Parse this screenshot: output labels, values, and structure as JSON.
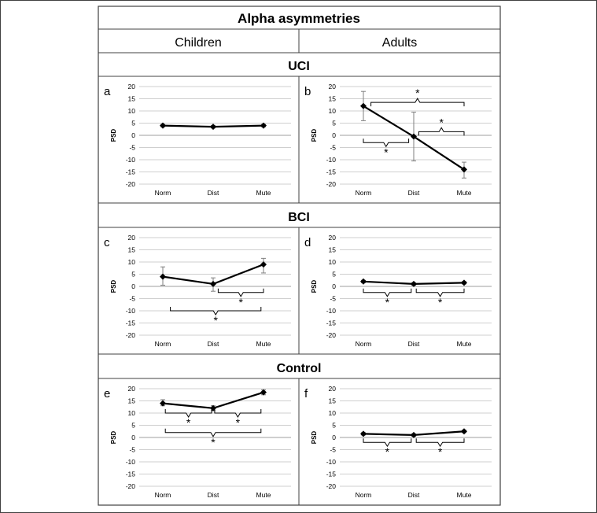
{
  "header": {
    "title": "Alpha asymmetries"
  },
  "columns": [
    "Children",
    "Adults"
  ],
  "sections": [
    "UCI",
    "BCI",
    "Control"
  ],
  "colors": {
    "line": "#000000",
    "grid": "#bfbfbf",
    "errorbar": "#7f7f7f",
    "frame": "#404040"
  },
  "chart_data": [
    {
      "panel": "a",
      "type": "line",
      "categories": [
        "Norm",
        "Dist",
        "Mute"
      ],
      "values": [
        4,
        3.5,
        4
      ],
      "errors": [
        [
          3.5,
          4.5
        ],
        [
          3,
          4
        ],
        [
          3.5,
          4.5
        ]
      ],
      "ylabel": "PSD",
      "ylim": [
        -20,
        20
      ],
      "yticks": [
        "20",
        "15",
        "10",
        "5",
        "0",
        "-5",
        "-10",
        "-15",
        "-20"
      ],
      "grid": true,
      "brackets": []
    },
    {
      "panel": "b",
      "type": "line",
      "categories": [
        "Norm",
        "Dist",
        "Mute"
      ],
      "values": [
        12,
        -0.5,
        -14
      ],
      "errors": [
        [
          6,
          18
        ],
        [
          -10.5,
          9.5
        ],
        [
          -17.5,
          -11
        ]
      ],
      "ylabel": "PSD",
      "ylim": [
        -20,
        20
      ],
      "yticks": [
        "20",
        "15",
        "10",
        "5",
        "0",
        "-5",
        "-10",
        "-15",
        "-20"
      ],
      "grid": true,
      "brackets": [
        {
          "from": 0.15,
          "to": 2,
          "y": 13.5,
          "dir": "up",
          "label": "*"
        },
        {
          "from": 0,
          "to": 0.9,
          "y": -3,
          "dir": "down",
          "label": "*"
        },
        {
          "from": 1.1,
          "to": 2,
          "y": 1.5,
          "dir": "up",
          "label": "*"
        }
      ]
    },
    {
      "panel": "c",
      "type": "line",
      "categories": [
        "Norm",
        "Dist",
        "Mute"
      ],
      "values": [
        4,
        1,
        9
      ],
      "errors": [
        [
          0.5,
          8
        ],
        [
          -2,
          3.5
        ],
        [
          5.5,
          11.5
        ]
      ],
      "ylabel": "PSD",
      "ylim": [
        -20,
        20
      ],
      "yticks": [
        "20",
        "15",
        "10",
        "5",
        "0",
        "-5",
        "-10",
        "-15",
        "-20"
      ],
      "grid": true,
      "brackets": [
        {
          "from": 1.1,
          "to": 2,
          "y": -2.5,
          "dir": "down",
          "label": "*"
        },
        {
          "from": 0.15,
          "to": 1.95,
          "y": -10,
          "dir": "down",
          "label": "*"
        }
      ]
    },
    {
      "panel": "d",
      "type": "line",
      "categories": [
        "Norm",
        "Dist",
        "Mute"
      ],
      "values": [
        2,
        1,
        1.5
      ],
      "errors": [
        [
          1.5,
          2.5
        ],
        [
          0.5,
          1.5
        ],
        [
          1,
          2
        ]
      ],
      "ylabel": "PSD",
      "ylim": [
        -20,
        20
      ],
      "yticks": [
        "20",
        "15",
        "10",
        "5",
        "0",
        "-5",
        "-10",
        "-15",
        "-20"
      ],
      "grid": true,
      "brackets": [
        {
          "from": 0,
          "to": 0.95,
          "y": -2.5,
          "dir": "down",
          "label": "*"
        },
        {
          "from": 1.05,
          "to": 2,
          "y": -2.5,
          "dir": "down",
          "label": "*"
        }
      ]
    },
    {
      "panel": "e",
      "type": "line",
      "categories": [
        "Norm",
        "Dist",
        "Mute"
      ],
      "values": [
        14,
        12,
        18.5
      ],
      "errors": [
        [
          13,
          15.5
        ],
        [
          11,
          13
        ],
        [
          17.5,
          19.5
        ]
      ],
      "ylabel": "PSD",
      "ylim": [
        -20,
        20
      ],
      "yticks": [
        "20",
        "15",
        "10",
        "5",
        "0",
        "-5",
        "-10",
        "-15",
        "-20"
      ],
      "grid": true,
      "brackets": [
        {
          "from": 0.05,
          "to": 0.97,
          "y": 10,
          "dir": "down",
          "label": "*"
        },
        {
          "from": 1.03,
          "to": 1.95,
          "y": 10,
          "dir": "down",
          "label": "*"
        },
        {
          "from": 0.05,
          "to": 1.95,
          "y": 2,
          "dir": "down",
          "label": "*"
        }
      ]
    },
    {
      "panel": "f",
      "type": "line",
      "categories": [
        "Norm",
        "Dist",
        "Mute"
      ],
      "values": [
        1.5,
        1,
        2.5
      ],
      "errors": [
        [
          1,
          2
        ],
        [
          0.5,
          1.5
        ],
        [
          2,
          3
        ]
      ],
      "ylabel": "PSD",
      "ylim": [
        -20,
        20
      ],
      "yticks": [
        "20",
        "15",
        "10",
        "5",
        "0",
        "-5",
        "-10",
        "-15",
        "-20"
      ],
      "grid": true,
      "brackets": [
        {
          "from": 0,
          "to": 0.95,
          "y": -2,
          "dir": "down",
          "label": "*"
        },
        {
          "from": 1.05,
          "to": 2,
          "y": -2,
          "dir": "down",
          "label": "*"
        }
      ]
    }
  ]
}
